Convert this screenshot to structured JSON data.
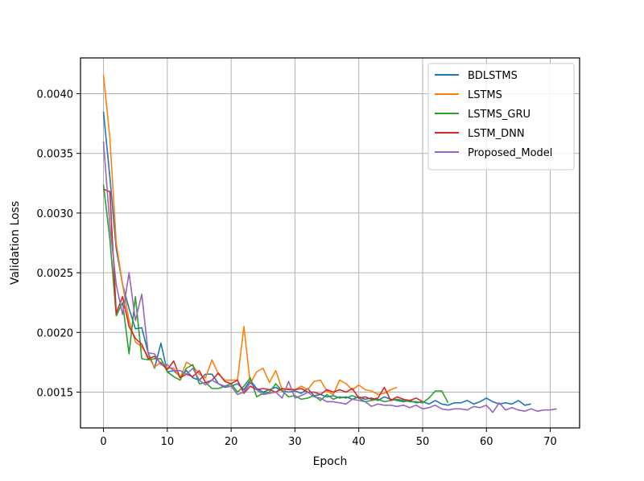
{
  "chart_data": {
    "type": "line",
    "title": "",
    "xlabel": "Epoch",
    "ylabel": "Validation Loss",
    "xlim": [
      -3.6,
      74.6
    ],
    "ylim": [
      0.0012,
      0.0043
    ],
    "xticks": [
      0,
      10,
      20,
      30,
      40,
      50,
      60,
      70
    ],
    "yticks": [
      0.0015,
      0.002,
      0.0025,
      0.003,
      0.0035,
      0.004
    ],
    "ytick_labels": [
      "0.0015",
      "0.0020",
      "0.0025",
      "0.0030",
      "0.0035",
      "0.0040"
    ],
    "grid": true,
    "legend_position": "top-right",
    "series": [
      {
        "name": "BDLSTMS",
        "color": "#1f77b4",
        "values": [
          0.00385,
          0.0033,
          0.0027,
          0.0024,
          0.0022,
          0.00203,
          0.00204,
          0.00183,
          0.0017,
          0.00191,
          0.00167,
          0.00168,
          0.00163,
          0.00168,
          0.00162,
          0.0016,
          0.00165,
          0.00165,
          0.00157,
          0.00154,
          0.00155,
          0.00157,
          0.00152,
          0.0016,
          0.00153,
          0.0015,
          0.00152,
          0.00154,
          0.00151,
          0.0015,
          0.00151,
          0.00149,
          0.00153,
          0.00147,
          0.00148,
          0.00146,
          0.00147,
          0.00145,
          0.00146,
          0.00144,
          0.00146,
          0.00144,
          0.00145,
          0.00143,
          0.00146,
          0.00144,
          0.00143,
          0.00142,
          0.00143,
          0.00141,
          0.00142,
          0.0014,
          0.00143,
          0.0014,
          0.00139,
          0.00141,
          0.00141,
          0.00143,
          0.0014,
          0.00142,
          0.00145,
          0.00142,
          0.0014,
          0.00141,
          0.0014,
          0.00143,
          0.00139,
          0.0014
        ]
      },
      {
        "name": "LSTMS",
        "color": "#ff7f0e",
        "values": [
          0.00416,
          0.00363,
          0.00275,
          0.0024,
          0.0021,
          0.00192,
          0.00188,
          0.0018,
          0.00171,
          0.00175,
          0.0017,
          0.0017,
          0.00162,
          0.00175,
          0.00172,
          0.00165,
          0.00162,
          0.00177,
          0.00165,
          0.0016,
          0.0016,
          0.0016,
          0.00205,
          0.00157,
          0.00167,
          0.0017,
          0.00158,
          0.00168,
          0.00152,
          0.00153,
          0.00152,
          0.00155,
          0.00152,
          0.00159,
          0.0016,
          0.00151,
          0.00148,
          0.0016,
          0.00157,
          0.00152,
          0.00156,
          0.00152,
          0.00151,
          0.00148,
          0.00149,
          0.00152,
          0.00154
        ]
      },
      {
        "name": "LSTMS_GRU",
        "color": "#2ca02c",
        "values": [
          0.00324,
          0.00278,
          0.00214,
          0.00225,
          0.00182,
          0.0023,
          0.00178,
          0.00177,
          0.00178,
          0.00178,
          0.00167,
          0.00163,
          0.0016,
          0.0017,
          0.00173,
          0.00157,
          0.00158,
          0.00153,
          0.00153,
          0.00155,
          0.00157,
          0.0015,
          0.00155,
          0.00162,
          0.00146,
          0.00149,
          0.0015,
          0.00157,
          0.00151,
          0.00146,
          0.00147,
          0.00144,
          0.00145,
          0.00147,
          0.00143,
          0.00148,
          0.00144,
          0.00146,
          0.00145,
          0.00147,
          0.00145,
          0.00142,
          0.00143,
          0.00144,
          0.00142,
          0.00143,
          0.00144,
          0.00143,
          0.00142,
          0.00142,
          0.00141,
          0.00145,
          0.00151,
          0.00151,
          0.00141
        ]
      },
      {
        "name": "LSTM_DNN",
        "color": "#d62728",
        "values": [
          0.0032,
          0.00318,
          0.00216,
          0.0023,
          0.00205,
          0.00195,
          0.0019,
          0.00178,
          0.0018,
          0.00174,
          0.00169,
          0.00176,
          0.00162,
          0.00165,
          0.00163,
          0.00168,
          0.00158,
          0.0016,
          0.00166,
          0.00159,
          0.00157,
          0.0016,
          0.00149,
          0.00155,
          0.00152,
          0.00153,
          0.00152,
          0.0015,
          0.00153,
          0.00152,
          0.00152,
          0.00153,
          0.0015,
          0.0015,
          0.00148,
          0.00152,
          0.0015,
          0.00152,
          0.0015,
          0.00153,
          0.00145,
          0.00146,
          0.00144,
          0.00145,
          0.00154,
          0.00143,
          0.00146,
          0.00144,
          0.00143,
          0.00145,
          0.00142
        ]
      },
      {
        "name": "Proposed_Model",
        "color": "#9467bd",
        "values": [
          0.0036,
          0.0029,
          0.0024,
          0.00215,
          0.0025,
          0.0021,
          0.00232,
          0.00183,
          0.00182,
          0.00173,
          0.00173,
          0.00168,
          0.00168,
          0.00165,
          0.0017,
          0.0016,
          0.00156,
          0.0016,
          0.00157,
          0.00155,
          0.00155,
          0.00148,
          0.0015,
          0.00158,
          0.00152,
          0.00148,
          0.00149,
          0.0015,
          0.00145,
          0.00159,
          0.00145,
          0.00147,
          0.0015,
          0.00146,
          0.00145,
          0.00142,
          0.00142,
          0.00141,
          0.0014,
          0.00144,
          0.00143,
          0.00142,
          0.00138,
          0.0014,
          0.00139,
          0.00139,
          0.00138,
          0.00139,
          0.00137,
          0.00139,
          0.00136,
          0.00137,
          0.00139,
          0.00136,
          0.00135,
          0.00136,
          0.00136,
          0.00135,
          0.00138,
          0.00137,
          0.00139,
          0.00133,
          0.00141,
          0.00135,
          0.00137,
          0.00135,
          0.00134,
          0.00136,
          0.00134,
          0.00135,
          0.00135,
          0.00136
        ]
      }
    ]
  }
}
